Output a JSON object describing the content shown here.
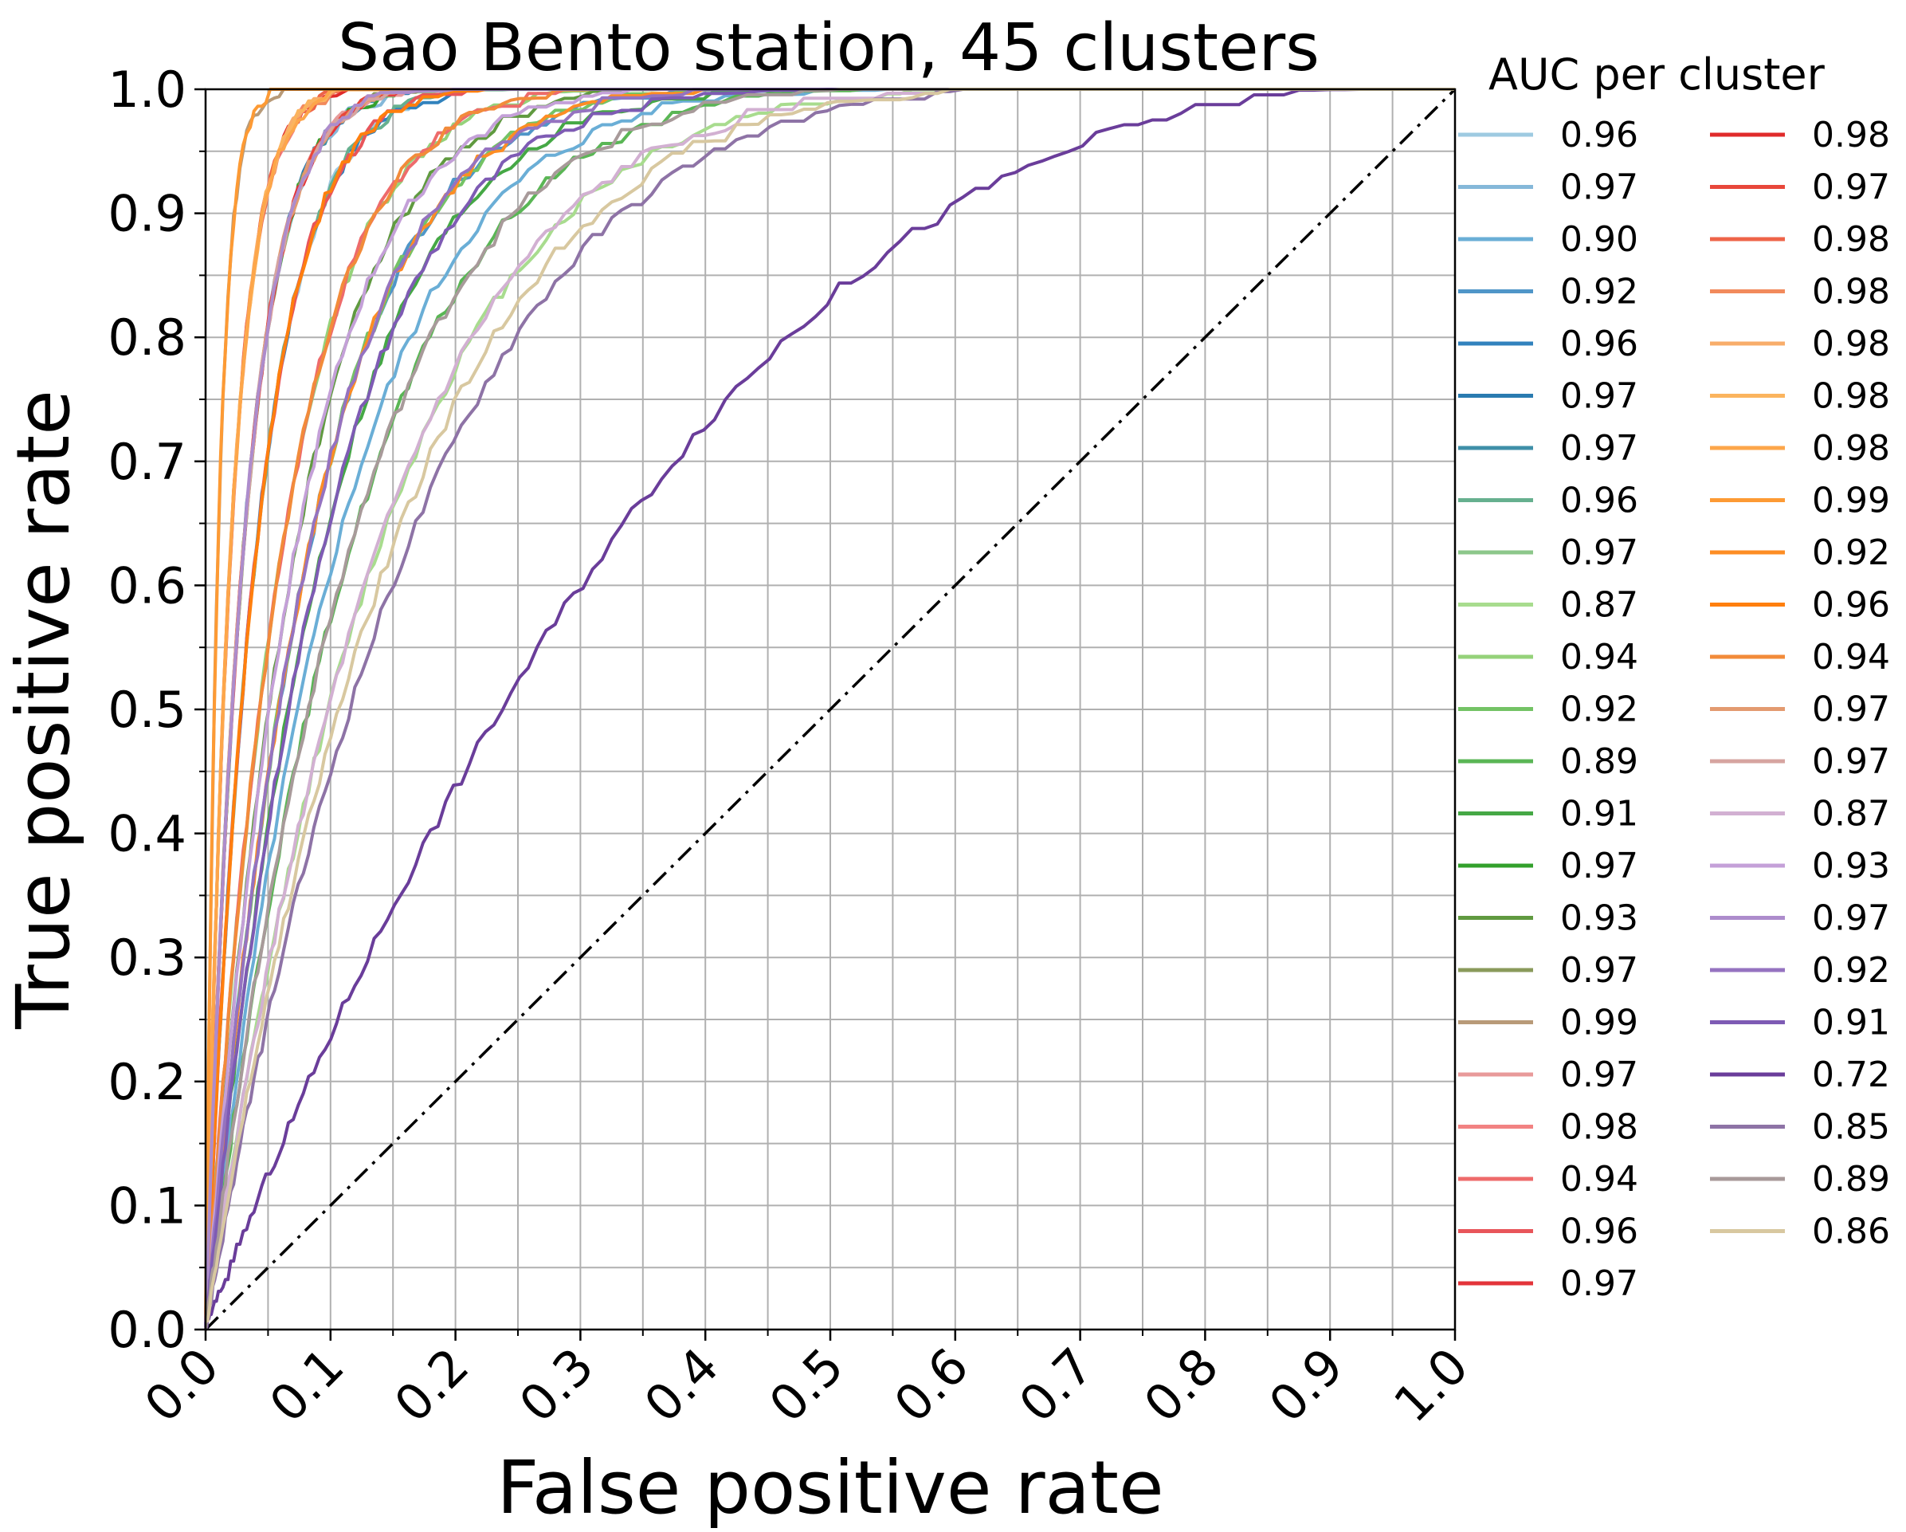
{
  "chart_data": {
    "type": "line",
    "title": "Sao Bento station, 45 clusters",
    "xlabel": "False positive rate",
    "ylabel": "True positive rate",
    "xlim": [
      0,
      1
    ],
    "ylim": [
      0,
      1
    ],
    "grid": true,
    "x_ticks": [
      "0.0",
      "0.1",
      "0.2",
      "0.3",
      "0.4",
      "0.5",
      "0.6",
      "0.7",
      "0.8",
      "0.9",
      "1.0"
    ],
    "y_ticks": [
      "0.0",
      "0.1",
      "0.2",
      "0.3",
      "0.4",
      "0.5",
      "0.6",
      "0.7",
      "0.8",
      "0.9",
      "1.0"
    ],
    "legend": {
      "title": "AUC per cluster",
      "placement": "outside-right",
      "columns": 2
    },
    "reference_line": {
      "style": "dash-dot",
      "color": "#000000",
      "x": [
        0,
        1
      ],
      "y": [
        0,
        1
      ]
    },
    "series": [
      {
        "name": "0.96",
        "color": "#9ecae1"
      },
      {
        "name": "0.97",
        "color": "#85b8d9"
      },
      {
        "name": "0.90",
        "color": "#6aaed6"
      },
      {
        "name": "0.92",
        "color": "#4f96c8"
      },
      {
        "name": "0.96",
        "color": "#3182bd"
      },
      {
        "name": "0.97",
        "color": "#2a7bb0"
      },
      {
        "name": "0.97",
        "color": "#3f8fa8"
      },
      {
        "name": "0.96",
        "color": "#66b08f"
      },
      {
        "name": "0.97",
        "color": "#8cc78a"
      },
      {
        "name": "0.87",
        "color": "#a8dc8e"
      },
      {
        "name": "0.94",
        "color": "#95d27a"
      },
      {
        "name": "0.92",
        "color": "#74c365"
      },
      {
        "name": "0.89",
        "color": "#5ab655"
      },
      {
        "name": "0.91",
        "color": "#45a845"
      },
      {
        "name": "0.97",
        "color": "#33a02c"
      },
      {
        "name": "0.93",
        "color": "#609a40"
      },
      {
        "name": "0.97",
        "color": "#8a9a5b"
      },
      {
        "name": "0.99",
        "color": "#b89a78"
      },
      {
        "name": "0.97",
        "color": "#e89a9a"
      },
      {
        "name": "0.98",
        "color": "#f28282"
      },
      {
        "name": "0.94",
        "color": "#ee6b6b"
      },
      {
        "name": "0.96",
        "color": "#e8555a"
      },
      {
        "name": "0.97",
        "color": "#e3343a"
      },
      {
        "name": "0.98",
        "color": "#e02b2b"
      },
      {
        "name": "0.97",
        "color": "#e8473a"
      },
      {
        "name": "0.98",
        "color": "#ee6448"
      },
      {
        "name": "0.98",
        "color": "#f28a5c"
      },
      {
        "name": "0.98",
        "color": "#f8ad6a"
      },
      {
        "name": "0.98",
        "color": "#fbb45e"
      },
      {
        "name": "0.98",
        "color": "#fda64a"
      },
      {
        "name": "0.99",
        "color": "#fd9a34"
      },
      {
        "name": "0.92",
        "color": "#fd8d24"
      },
      {
        "name": "0.96",
        "color": "#ff7f0e"
      },
      {
        "name": "0.94",
        "color": "#f28b3a"
      },
      {
        "name": "0.97",
        "color": "#e39a70"
      },
      {
        "name": "0.97",
        "color": "#d6a4a0"
      },
      {
        "name": "0.87",
        "color": "#d2b0d2"
      },
      {
        "name": "0.93",
        "color": "#c4a0d8"
      },
      {
        "name": "0.97",
        "color": "#ad8ccc"
      },
      {
        "name": "0.92",
        "color": "#9573c0"
      },
      {
        "name": "0.91",
        "color": "#7e5bb4"
      },
      {
        "name": "0.72",
        "color": "#6a3d9a"
      },
      {
        "name": "0.85",
        "color": "#8e73a6"
      },
      {
        "name": "0.89",
        "color": "#a89a9a"
      },
      {
        "name": "0.86",
        "color": "#d8c8a0"
      }
    ]
  }
}
